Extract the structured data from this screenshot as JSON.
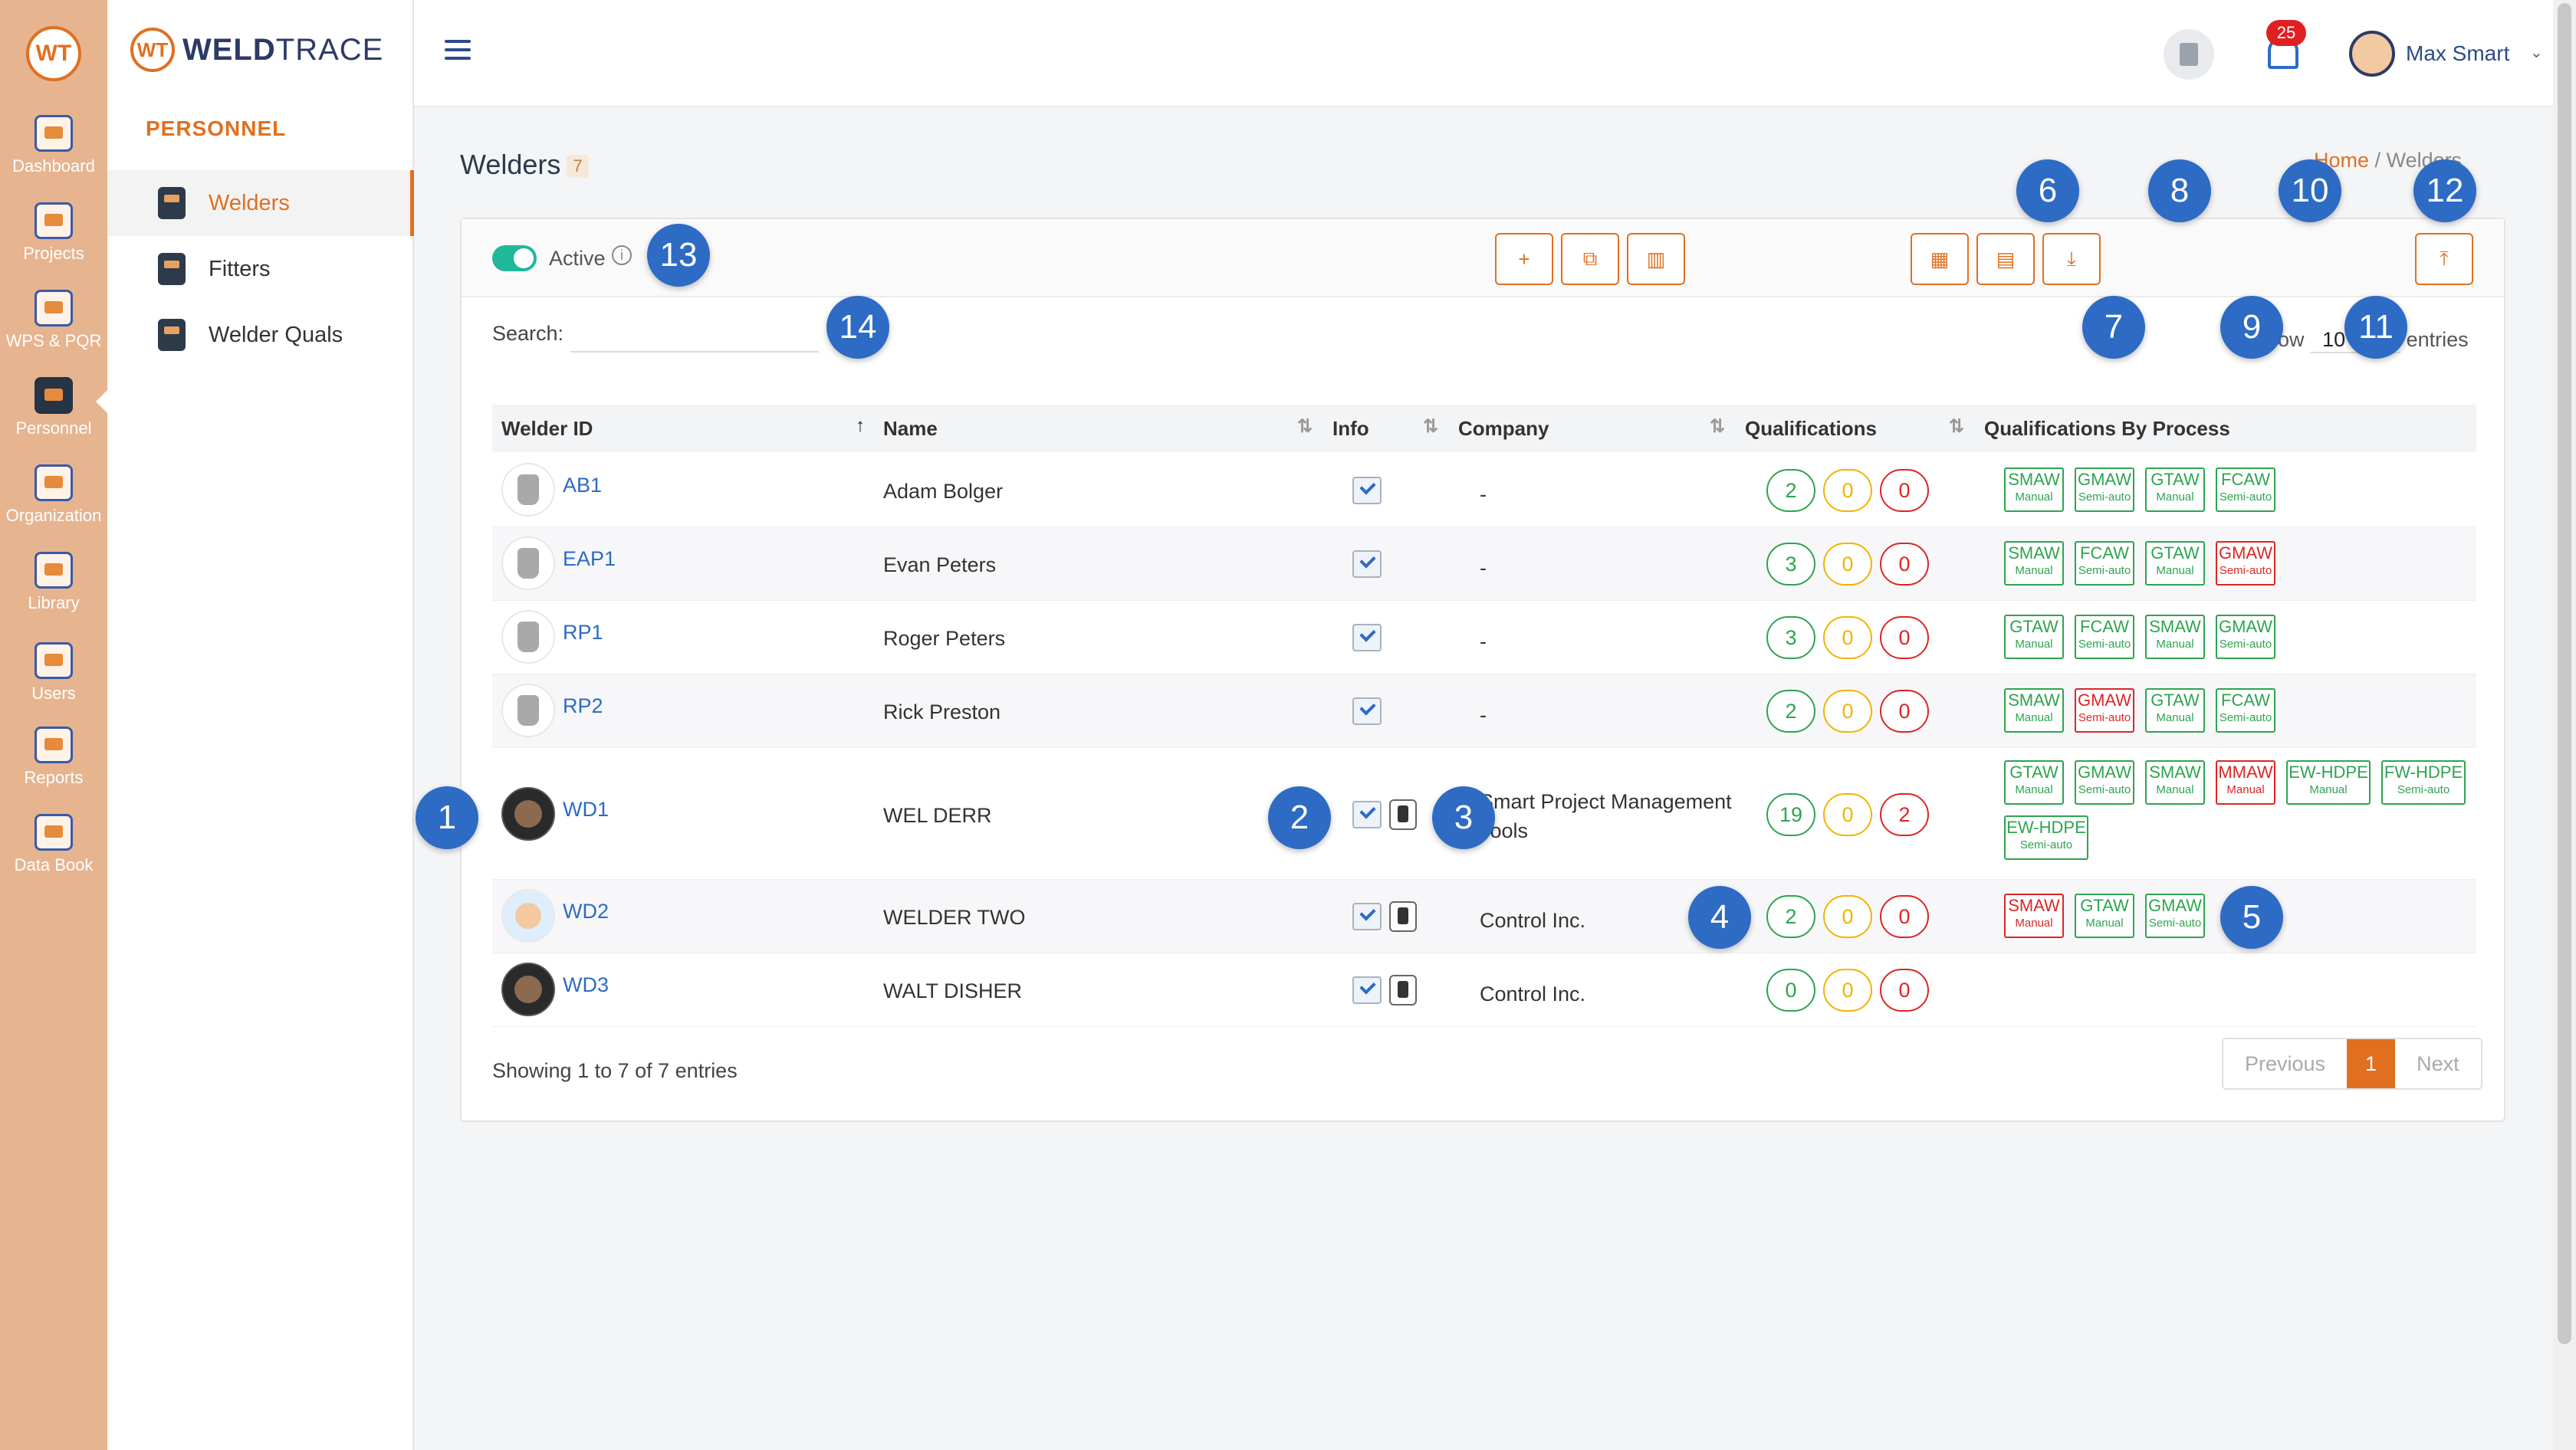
{
  "rail": {
    "logo": "WT",
    "items": [
      {
        "label": "Dashboard",
        "icon": "dashboard-icon"
      },
      {
        "label": "Projects",
        "icon": "projects-icon"
      },
      {
        "label": "WPS & PQR",
        "icon": "wps-pqr-icon"
      },
      {
        "label": "Personnel",
        "icon": "personnel-icon"
      },
      {
        "label": "Organization",
        "icon": "organization-icon"
      },
      {
        "label": "Library",
        "icon": "library-icon"
      },
      {
        "label": "Users",
        "icon": "users-icon"
      },
      {
        "label": "Reports",
        "icon": "reports-icon"
      },
      {
        "label": "Data Book",
        "icon": "data-book-icon"
      }
    ]
  },
  "brand": {
    "mark": "WT",
    "name_bold": "WELD",
    "name_light": "TRACE"
  },
  "subnav": {
    "section": "PERSONNEL",
    "items": [
      {
        "label": "Welders",
        "icon": "welder-icon"
      },
      {
        "label": "Fitters",
        "icon": "fitter-icon"
      },
      {
        "label": "Welder Quals",
        "icon": "welder-quals-icon"
      }
    ]
  },
  "topbar": {
    "notifications": "25",
    "user": "Max Smart",
    "chevron": "⌄"
  },
  "page": {
    "title": "Welders",
    "count": "7",
    "crumb_home": "Home",
    "crumb_sep": "/",
    "crumb_current": "Welders"
  },
  "filter": {
    "active_label": "Active",
    "info": "i"
  },
  "toolbar": {
    "buttons": [
      {
        "name": "add-button",
        "glyph": "+"
      },
      {
        "name": "copy-button",
        "glyph": "⧉"
      },
      {
        "name": "chart-button",
        "glyph": "▥"
      },
      {
        "name": "calendar-button",
        "glyph": "▦"
      },
      {
        "name": "schedule-button",
        "glyph": "▤"
      },
      {
        "name": "download-button",
        "glyph": "⤓"
      },
      {
        "name": "upload-button",
        "glyph": "⤒"
      }
    ]
  },
  "search": {
    "label": "Search:",
    "value": ""
  },
  "show": {
    "prefix": "Show",
    "value": "10",
    "suffix": "entries"
  },
  "table": {
    "headers": [
      "Welder ID",
      "Name",
      "Info",
      "Company",
      "Qualifications",
      "Qualifications By Process"
    ],
    "sort_glyphs": {
      "active": "↑",
      "idle": "⇅"
    },
    "rows": [
      {
        "id": "AB1",
        "name": "Adam Bolger",
        "company": "-",
        "quals": [
          "2",
          "0",
          "0"
        ],
        "process": [
          [
            "SMAW",
            "Manual",
            "ok"
          ],
          [
            "GMAW",
            "Semi-auto",
            "ok"
          ],
          [
            "GTAW",
            "Manual",
            "ok"
          ],
          [
            "FCAW",
            "Semi-auto",
            "ok"
          ]
        ]
      },
      {
        "id": "EAP1",
        "name": "Evan Peters",
        "company": "-",
        "quals": [
          "3",
          "0",
          "0"
        ],
        "process": [
          [
            "SMAW",
            "Manual",
            "ok"
          ],
          [
            "FCAW",
            "Semi-auto",
            "ok"
          ],
          [
            "GTAW",
            "Manual",
            "ok"
          ],
          [
            "GMAW",
            "Semi-auto",
            "bad"
          ]
        ]
      },
      {
        "id": "RP1",
        "name": "Roger Peters",
        "company": "-",
        "quals": [
          "3",
          "0",
          "0"
        ],
        "process": [
          [
            "GTAW",
            "Manual",
            "ok"
          ],
          [
            "FCAW",
            "Semi-auto",
            "ok"
          ],
          [
            "SMAW",
            "Manual",
            "ok"
          ],
          [
            "GMAW",
            "Semi-auto",
            "ok"
          ]
        ]
      },
      {
        "id": "RP2",
        "name": "Rick Preston",
        "company": "-",
        "quals": [
          "2",
          "0",
          "0"
        ],
        "process": [
          [
            "SMAW",
            "Manual",
            "ok"
          ],
          [
            "GMAW",
            "Semi-auto",
            "bad"
          ],
          [
            "GTAW",
            "Manual",
            "ok"
          ],
          [
            "FCAW",
            "Semi-auto",
            "ok"
          ]
        ]
      },
      {
        "id": "WD1",
        "name": "WEL DERR",
        "company": "Smart Project Management Tools",
        "quals": [
          "19",
          "0",
          "2"
        ],
        "process": [
          [
            "GTAW",
            "Manual",
            "ok"
          ],
          [
            "GMAW",
            "Semi-auto",
            "ok"
          ],
          [
            "SMAW",
            "Manual",
            "ok"
          ],
          [
            "MMAW",
            "Manual",
            "bad"
          ],
          [
            "EW-HDPE",
            "Manual",
            "ok"
          ],
          [
            "FW-HDPE",
            "Semi-auto",
            "ok"
          ],
          [
            "EW-HDPE",
            "Semi-auto",
            "ok"
          ]
        ]
      },
      {
        "id": "WD2",
        "name": "WELDER TWO",
        "company": "Control Inc.",
        "quals": [
          "2",
          "0",
          "0"
        ],
        "process": [
          [
            "SMAW",
            "Manual",
            "bad"
          ],
          [
            "GTAW",
            "Manual",
            "ok"
          ],
          [
            "GMAW",
            "Semi-auto",
            "ok"
          ]
        ]
      },
      {
        "id": "WD3",
        "name": "WALT DISHER",
        "company": "Control Inc.",
        "quals": [
          "0",
          "0",
          "0"
        ],
        "process": []
      }
    ]
  },
  "footer": {
    "info": "Showing 1 to 7 of 7 entries",
    "prev": "Previous",
    "page": "1",
    "next": "Next"
  },
  "annotations": [
    "1",
    "2",
    "3",
    "4",
    "5",
    "6",
    "7",
    "8",
    "9",
    "10",
    "11",
    "12",
    "13",
    "14"
  ]
}
